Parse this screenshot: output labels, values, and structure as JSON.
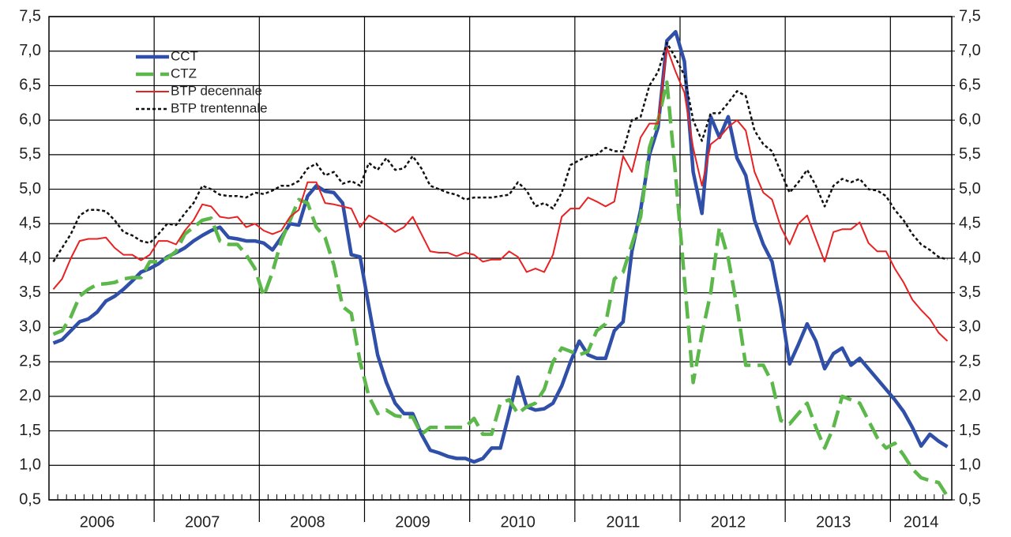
{
  "chart_data": {
    "type": "line",
    "categories": [
      null,
      null,
      null,
      null,
      null,
      "2006",
      null,
      null,
      null,
      null,
      null,
      null,
      null,
      null,
      null,
      null,
      null,
      "2007",
      null,
      null,
      null,
      null,
      null,
      null,
      null,
      null,
      null,
      null,
      null,
      "2008",
      null,
      null,
      null,
      null,
      null,
      null,
      null,
      null,
      null,
      null,
      null,
      "2009",
      null,
      null,
      null,
      null,
      null,
      null,
      null,
      null,
      null,
      null,
      null,
      "2010",
      null,
      null,
      null,
      null,
      null,
      null,
      null,
      null,
      null,
      null,
      null,
      "2011",
      null,
      null,
      null,
      null,
      null,
      null,
      null,
      null,
      null,
      null,
      null,
      "2012",
      null,
      null,
      null,
      null,
      null,
      null,
      null,
      null,
      null,
      null,
      null,
      "2013",
      null,
      null,
      null,
      null,
      null,
      null,
      null,
      null,
      null,
      "2014",
      null,
      null,
      null
    ],
    "series": [
      {
        "name": "CCT",
        "color": "#2f4fa8",
        "style": "solid",
        "width": 4.5,
        "values": [
          2.77,
          2.82,
          2.95,
          3.08,
          3.12,
          3.22,
          3.38,
          3.45,
          3.55,
          3.67,
          3.8,
          3.85,
          3.92,
          4.02,
          4.08,
          4.15,
          4.25,
          4.33,
          4.4,
          4.45,
          4.3,
          4.28,
          4.25,
          4.25,
          4.22,
          4.12,
          4.3,
          4.5,
          4.48,
          4.9,
          5.05,
          4.97,
          4.95,
          4.8,
          4.05,
          4.02,
          3.3,
          2.6,
          2.2,
          1.9,
          1.75,
          1.75,
          1.45,
          1.22,
          1.18,
          1.13,
          1.1,
          1.1,
          1.05,
          1.1,
          1.25,
          1.25,
          1.75,
          2.28,
          1.85,
          1.8,
          1.82,
          1.9,
          2.15,
          2.5,
          2.8,
          2.6,
          2.55,
          2.55,
          2.95,
          3.08,
          4.1,
          4.7,
          5.5,
          5.9,
          7.15,
          7.28,
          6.85,
          5.25,
          4.65,
          6.05,
          5.75,
          6.05,
          5.45,
          5.2,
          4.55,
          4.2,
          3.95,
          3.3,
          2.47,
          2.75,
          3.05,
          2.8,
          2.4,
          2.62,
          2.7,
          2.45,
          2.55,
          2.4,
          2.25,
          2.1,
          1.95,
          1.78,
          1.55,
          1.28,
          1.45,
          1.35,
          1.27
        ]
      },
      {
        "name": "CTZ",
        "color": "#5cb84a",
        "style": "dashed",
        "width": 4.5,
        "values": [
          2.9,
          2.95,
          3.15,
          3.45,
          3.55,
          3.62,
          3.63,
          3.65,
          3.7,
          3.72,
          3.72,
          3.95,
          3.95,
          4.0,
          4.1,
          4.35,
          4.45,
          4.55,
          4.58,
          4.25,
          4.2,
          4.2,
          4.05,
          3.85,
          3.45,
          3.8,
          4.25,
          4.55,
          4.85,
          4.8,
          4.45,
          4.3,
          3.9,
          3.3,
          3.2,
          2.5,
          2.0,
          1.75,
          1.8,
          1.72,
          1.7,
          1.7,
          1.45,
          1.55,
          1.55,
          1.55,
          1.55,
          1.55,
          1.68,
          1.45,
          1.45,
          1.9,
          1.95,
          1.75,
          1.85,
          1.9,
          2.1,
          2.5,
          2.7,
          2.65,
          2.6,
          2.65,
          2.95,
          3.05,
          3.7,
          3.8,
          4.2,
          4.6,
          5.6,
          6.0,
          6.55,
          5.2,
          3.7,
          2.2,
          2.9,
          3.5,
          4.45,
          4.0,
          3.3,
          2.45,
          2.45,
          2.45,
          2.2,
          1.65,
          1.6,
          1.75,
          1.9,
          1.55,
          1.25,
          1.55,
          2.0,
          1.95,
          1.9,
          1.65,
          1.4,
          1.25,
          1.32,
          1.15,
          0.95,
          0.82,
          0.78,
          0.75,
          0.55
        ]
      },
      {
        "name": "BTP decennale",
        "color": "#e82222",
        "style": "solid",
        "width": 2,
        "values": [
          3.55,
          3.7,
          4.0,
          4.25,
          4.28,
          4.28,
          4.3,
          4.15,
          4.05,
          4.05,
          3.97,
          4.05,
          4.25,
          4.25,
          4.2,
          4.4,
          4.55,
          4.78,
          4.75,
          4.6,
          4.58,
          4.6,
          4.45,
          4.5,
          4.4,
          4.35,
          4.4,
          4.6,
          4.7,
          5.1,
          5.1,
          4.8,
          4.78,
          4.75,
          4.72,
          4.45,
          4.62,
          4.55,
          4.48,
          4.38,
          4.45,
          4.6,
          4.35,
          4.1,
          4.08,
          4.08,
          4.03,
          4.08,
          4.05,
          3.95,
          3.98,
          3.98,
          4.1,
          4.02,
          3.8,
          3.85,
          3.8,
          4.05,
          4.6,
          4.72,
          4.72,
          4.88,
          4.82,
          4.75,
          4.82,
          5.48,
          5.25,
          5.75,
          5.95,
          5.95,
          7.05,
          6.7,
          6.4,
          5.6,
          5.05,
          5.65,
          5.75,
          5.9,
          6.0,
          5.85,
          5.25,
          4.95,
          4.85,
          4.45,
          4.2,
          4.5,
          4.62,
          4.28,
          3.95,
          4.38,
          4.42,
          4.42,
          4.52,
          4.22,
          4.1,
          4.1,
          3.85,
          3.65,
          3.4,
          3.25,
          3.12,
          2.92,
          2.8
        ]
      },
      {
        "name": "BTP trentennale",
        "color": "#111111",
        "style": "dotted",
        "width": 2.5,
        "values": [
          3.95,
          4.15,
          4.35,
          4.62,
          4.7,
          4.7,
          4.68,
          4.55,
          4.38,
          4.33,
          4.25,
          4.22,
          4.35,
          4.5,
          4.48,
          4.65,
          4.8,
          5.05,
          5.0,
          4.92,
          4.9,
          4.9,
          4.88,
          4.95,
          4.93,
          4.98,
          5.05,
          5.05,
          5.12,
          5.3,
          5.37,
          5.2,
          5.25,
          5.08,
          5.12,
          5.05,
          5.38,
          5.28,
          5.45,
          5.28,
          5.3,
          5.48,
          5.3,
          5.05,
          5.0,
          4.95,
          4.92,
          4.85,
          4.88,
          4.88,
          4.88,
          4.9,
          4.92,
          5.1,
          4.98,
          4.75,
          4.8,
          4.72,
          4.95,
          5.35,
          5.42,
          5.48,
          5.5,
          5.6,
          5.55,
          5.55,
          6.0,
          6.05,
          6.5,
          6.7,
          7.12,
          6.9,
          6.65,
          6.0,
          5.7,
          6.1,
          6.1,
          6.25,
          6.42,
          6.35,
          5.85,
          5.65,
          5.55,
          5.25,
          4.95,
          5.1,
          5.28,
          5.05,
          4.75,
          5.05,
          5.15,
          5.1,
          5.15,
          5.0,
          4.98,
          4.9,
          4.7,
          4.55,
          4.35,
          4.2,
          4.12,
          4.02,
          3.98
        ]
      }
    ],
    "ylim": [
      0.5,
      7.5
    ],
    "yticks": [
      {
        "value": 0.5,
        "label": "0,5"
      },
      {
        "value": 1,
        "label": "1,0"
      },
      {
        "value": 1.5,
        "label": "1,5"
      },
      {
        "value": 2,
        "label": "2,0"
      },
      {
        "value": 2.5,
        "label": "2,5"
      },
      {
        "value": 3,
        "label": "3,0"
      },
      {
        "value": 3.5,
        "label": "3,5"
      },
      {
        "value": 4,
        "label": "4,0"
      },
      {
        "value": 4.5,
        "label": "4,5"
      },
      {
        "value": 5,
        "label": "5,0"
      },
      {
        "value": 5.5,
        "label": "5,5"
      },
      {
        "value": 6,
        "label": "6,0"
      },
      {
        "value": 6.5,
        "label": "6,5"
      },
      {
        "value": 7,
        "label": "7,0"
      },
      {
        "value": 7.5,
        "label": "7,5"
      }
    ],
    "y2lim": [
      0.5,
      7.5
    ],
    "y2ticks": [
      {
        "value": 0.5,
        "label": "0,5"
      },
      {
        "value": 1,
        "label": "1,0"
      },
      {
        "value": 1.5,
        "label": "1,5"
      },
      {
        "value": 2,
        "label": "2,0"
      },
      {
        "value": 2.5,
        "label": "2,5"
      },
      {
        "value": 3,
        "label": "3,0"
      },
      {
        "value": 3.5,
        "label": "3,5"
      },
      {
        "value": 4,
        "label": "4,0"
      },
      {
        "value": 4.5,
        "label": "4,5"
      },
      {
        "value": 5,
        "label": "5,0"
      },
      {
        "value": 5.5,
        "label": "5,5"
      },
      {
        "value": 6,
        "label": "6,0"
      },
      {
        "value": 6.5,
        "label": "6,5"
      },
      {
        "value": 7,
        "label": "7,0"
      },
      {
        "value": 7.5,
        "label": "7,5"
      }
    ],
    "grid": true,
    "legend": "upper-left"
  }
}
